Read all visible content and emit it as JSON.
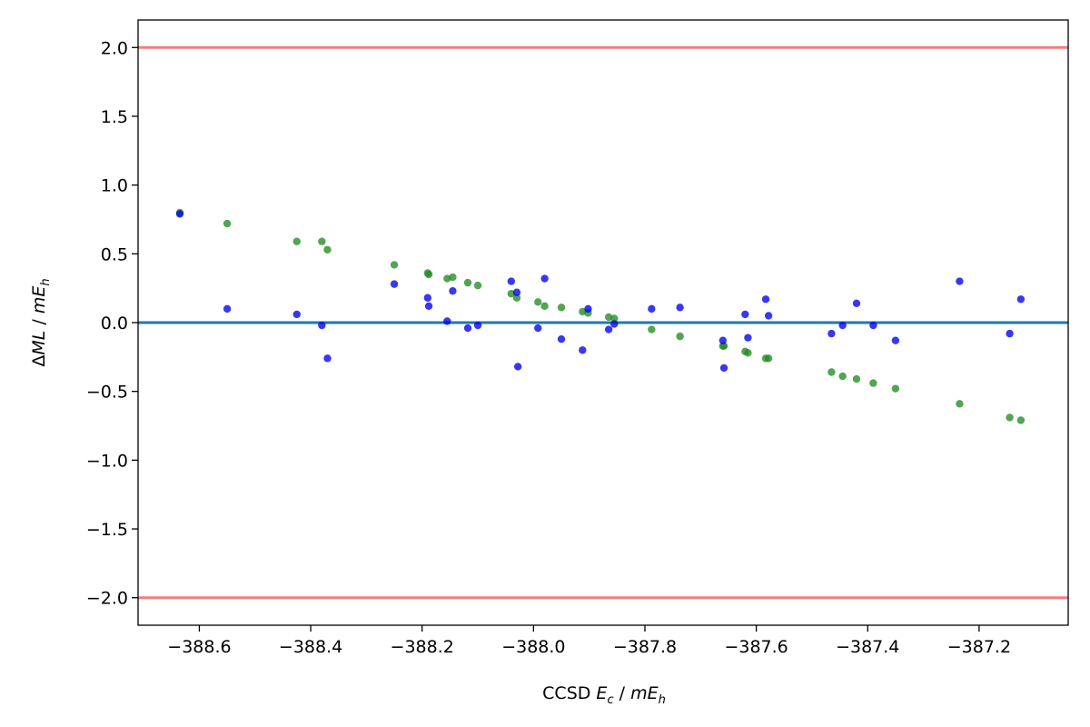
{
  "chart_data": {
    "type": "scatter",
    "title": "",
    "xlabel": {
      "prefix": "CCSD ",
      "sym": "E",
      "sub": "c",
      "mid": " / ",
      "sym2": "mE",
      "sub2": "h"
    },
    "ylabel": {
      "prefix": "Δ",
      "sym": "ML",
      "mid": " / ",
      "sym2": "mE",
      "sub2": "h"
    },
    "xlim": [
      -388.71,
      -387.04
    ],
    "ylim": [
      -2.2,
      2.2
    ],
    "x_ticks": [
      {
        "value": -388.6,
        "label": "−388.6"
      },
      {
        "value": -388.4,
        "label": "−388.4"
      },
      {
        "value": -388.2,
        "label": "−388.2"
      },
      {
        "value": -388.0,
        "label": "−388.0"
      },
      {
        "value": -387.8,
        "label": "−387.8"
      },
      {
        "value": -387.6,
        "label": "−387.6"
      },
      {
        "value": -387.4,
        "label": "−387.4"
      },
      {
        "value": -387.2,
        "label": "−387.2"
      }
    ],
    "y_ticks": [
      {
        "value": 2.0,
        "label": "2.0"
      },
      {
        "value": 1.5,
        "label": "1.5"
      },
      {
        "value": 1.0,
        "label": "1.0"
      },
      {
        "value": 0.5,
        "label": "0.5"
      },
      {
        "value": 0.0,
        "label": "0.0"
      },
      {
        "value": -0.5,
        "label": "−0.5"
      },
      {
        "value": -1.0,
        "label": "−1.0"
      },
      {
        "value": -1.5,
        "label": "−1.5"
      },
      {
        "value": -2.0,
        "label": "−2.0"
      }
    ],
    "grid": false,
    "legend": "none",
    "reference_lines": [
      {
        "y": 2.0,
        "color": "#f08080"
      },
      {
        "y": -2.0,
        "color": "#f08080"
      },
      {
        "y": 0.0,
        "color": "#1f77b4"
      }
    ],
    "series": [
      {
        "color": "#228b22",
        "x": [
          -388.635,
          -388.55,
          -388.425,
          -388.38,
          -388.37,
          -388.25,
          -388.19,
          -388.188,
          -388.155,
          -388.145,
          -388.118,
          -388.1,
          -388.04,
          -388.03,
          -387.992,
          -387.98,
          -387.95,
          -387.912,
          -387.902,
          -387.865,
          -387.855,
          -387.788,
          -387.737,
          -387.66,
          -387.658,
          -387.62,
          -387.615,
          -387.583,
          -387.578,
          -387.465,
          -387.445,
          -387.42,
          -387.39,
          -387.35,
          -387.235,
          -387.145,
          -387.125
        ],
        "y": [
          0.8,
          0.72,
          0.59,
          0.59,
          0.53,
          0.42,
          0.36,
          0.35,
          0.32,
          0.33,
          0.29,
          0.27,
          0.21,
          0.18,
          0.15,
          0.12,
          0.11,
          0.08,
          0.07,
          0.04,
          0.03,
          -0.05,
          -0.1,
          -0.17,
          -0.17,
          -0.21,
          -0.22,
          -0.26,
          -0.26,
          -0.36,
          -0.39,
          -0.41,
          -0.44,
          -0.48,
          -0.59,
          -0.69,
          -0.71
        ]
      },
      {
        "color": "#0000ee",
        "x": [
          -388.635,
          -388.55,
          -388.425,
          -388.38,
          -388.37,
          -388.25,
          -388.19,
          -388.188,
          -388.155,
          -388.145,
          -388.118,
          -388.1,
          -388.04,
          -388.03,
          -388.028,
          -387.992,
          -387.98,
          -387.95,
          -387.912,
          -387.902,
          -387.865,
          -387.855,
          -387.788,
          -387.737,
          -387.66,
          -387.658,
          -387.62,
          -387.615,
          -387.583,
          -387.578,
          -387.465,
          -387.445,
          -387.42,
          -387.39,
          -387.35,
          -387.235,
          -387.145,
          -387.125
        ],
        "y": [
          0.79,
          0.1,
          0.06,
          -0.02,
          -0.26,
          0.28,
          0.18,
          0.12,
          0.01,
          0.23,
          -0.04,
          -0.02,
          0.3,
          0.22,
          -0.32,
          -0.04,
          0.32,
          -0.12,
          -0.2,
          0.1,
          -0.05,
          -0.01,
          0.1,
          0.11,
          -0.13,
          -0.33,
          0.06,
          -0.11,
          0.17,
          0.05,
          -0.08,
          -0.02,
          0.14,
          -0.02,
          -0.13,
          0.3,
          -0.08,
          0.17
        ]
      }
    ]
  }
}
